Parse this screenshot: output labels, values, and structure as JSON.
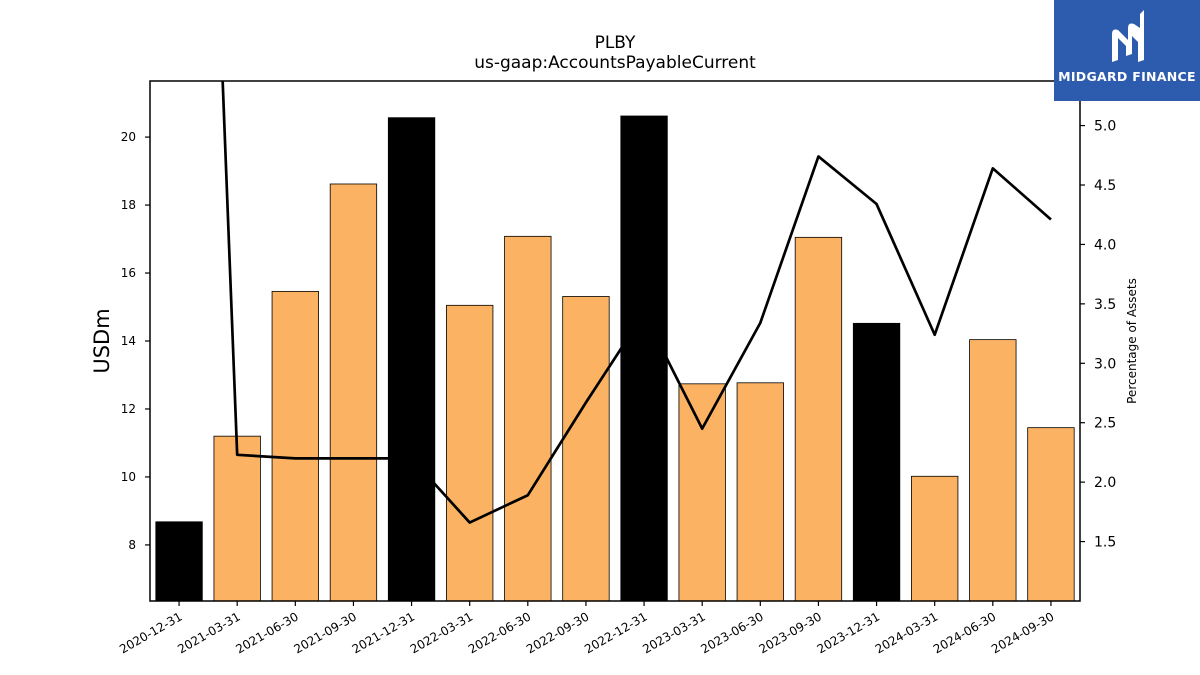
{
  "chart_data": {
    "type": "bar",
    "title": "PLBY",
    "subtitle": "us-gaap:AccountsPayableCurrent",
    "ylabel": "USDm",
    "y2label": "Percentage of Assets",
    "categories": [
      "2020-12-31",
      "2021-03-31",
      "2021-06-30",
      "2021-09-30",
      "2021-12-31",
      "2022-03-31",
      "2022-06-30",
      "2022-09-30",
      "2022-12-31",
      "2023-03-31",
      "2023-06-30",
      "2023-09-30",
      "2023-12-31",
      "2024-03-31",
      "2024-06-30",
      "2024-09-30"
    ],
    "series": [
      {
        "values": [
          8.68,
          11.2,
          15.46,
          18.62,
          20.57,
          15.05,
          17.08,
          15.31,
          20.62,
          12.74,
          12.77,
          17.05,
          14.52,
          10.02,
          14.04,
          11.45
        ]
      },
      {
        "axis": "right",
        "type": "line",
        "values": [
          null,
          2.23,
          2.2,
          2.2,
          2.2,
          1.66,
          1.89,
          2.67,
          3.42,
          2.45,
          3.34,
          4.74,
          4.34,
          3.24,
          4.64,
          4.21
        ]
      }
    ],
    "bar_colors": [
      "#000000",
      "#fbb363",
      "#fbb363",
      "#fbb363",
      "#000000",
      "#fbb363",
      "#fbb363",
      "#fbb363",
      "#000000",
      "#fbb363",
      "#fbb363",
      "#fbb363",
      "#000000",
      "#fbb363",
      "#fbb363",
      "#fbb363"
    ],
    "line_color": "#000000",
    "ylim": [
      6.35,
      21.65
    ],
    "yticks": [
      8,
      10,
      12,
      14,
      16,
      18,
      20
    ],
    "y2lim": [
      1.0,
      5.375
    ],
    "y2ticks": [
      1.5,
      2.0,
      2.5,
      3.0,
      3.5,
      4.0,
      4.5,
      5.0
    ],
    "grid": false,
    "legend": "none"
  },
  "logo": {
    "text": "MIDGARD FINANCE",
    "background": "#2d5cae"
  }
}
